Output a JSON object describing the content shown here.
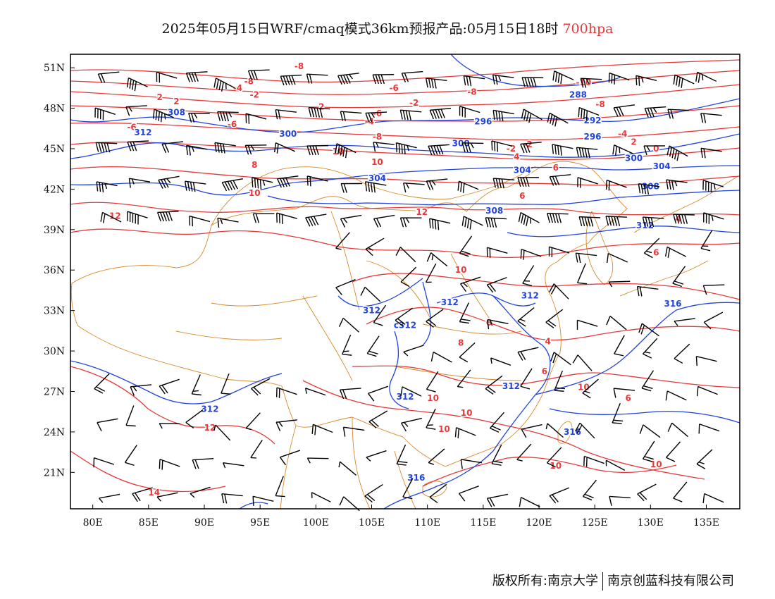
{
  "title": {
    "main": "2025年05月15日WRF/cmaq模式36km预报产品:05月15日18时",
    "level": "700hpa"
  },
  "colors": {
    "temperature_contour": "#e8393a",
    "height_contour": "#2244dd",
    "border": "#d98a2b",
    "wind_barb": "#000000",
    "frame": "#000000"
  },
  "axes": {
    "lon_labels": [
      "80E",
      "85E",
      "90E",
      "95E",
      "100E",
      "105E",
      "110E",
      "115E",
      "120E",
      "125E",
      "130E",
      "135E"
    ],
    "lat_labels": [
      "51N",
      "48N",
      "45N",
      "42N",
      "39N",
      "36N",
      "33N",
      "30N",
      "27N",
      "24N",
      "21N"
    ],
    "lon_values": [
      80,
      85,
      90,
      95,
      100,
      105,
      110,
      115,
      120,
      125,
      130,
      135
    ],
    "lat_values": [
      51,
      48,
      45,
      42,
      39,
      36,
      33,
      30,
      27,
      24,
      21
    ],
    "lon_range": [
      78,
      138
    ],
    "lat_range": [
      18.3,
      52
    ]
  },
  "contour_labels": {
    "temperature": [
      {
        "text": "-8",
        "lon": 98.5,
        "lat": 51.1
      },
      {
        "text": "-8",
        "lon": 94.0,
        "lat": 50.0
      },
      {
        "text": "-4",
        "lon": 93.0,
        "lat": 49.5
      },
      {
        "text": "-2",
        "lon": 94.5,
        "lat": 49.0
      },
      {
        "text": "-6",
        "lon": 107.0,
        "lat": 49.5
      },
      {
        "text": "-8",
        "lon": 114.0,
        "lat": 49.2
      },
      {
        "text": "-2",
        "lon": 108.8,
        "lat": 48.4
      },
      {
        "text": "2",
        "lon": 86.0,
        "lat": 48.8
      },
      {
        "text": "2",
        "lon": 87.5,
        "lat": 48.5
      },
      {
        "text": "2",
        "lon": 100.5,
        "lat": 48.1
      },
      {
        "text": "-6",
        "lon": 83.5,
        "lat": 46.6
      },
      {
        "text": "-6",
        "lon": 92.5,
        "lat": 46.8
      },
      {
        "text": "-6",
        "lon": 105.5,
        "lat": 47.6
      },
      {
        "text": "-4",
        "lon": 104.8,
        "lat": 47.0
      },
      {
        "text": "-8",
        "lon": 105.5,
        "lat": 45.9
      },
      {
        "text": "10",
        "lon": 102.0,
        "lat": 44.8
      },
      {
        "text": "10",
        "lon": 105.5,
        "lat": 44.0
      },
      {
        "text": "8",
        "lon": 94.5,
        "lat": 43.8
      },
      {
        "text": "10",
        "lon": 94.5,
        "lat": 41.7
      },
      {
        "text": "12",
        "lon": 82.0,
        "lat": 40.0
      },
      {
        "text": "12",
        "lon": 109.5,
        "lat": 40.3
      },
      {
        "text": "-8",
        "lon": 125.5,
        "lat": 48.3
      },
      {
        "text": "-10",
        "lon": 124.0,
        "lat": 49.9
      },
      {
        "text": "-4",
        "lon": 127.5,
        "lat": 46.1
      },
      {
        "text": "2",
        "lon": 128.5,
        "lat": 45.5
      },
      {
        "text": "0",
        "lon": 130.5,
        "lat": 45.0
      },
      {
        "text": "-2",
        "lon": 117.5,
        "lat": 45.0
      },
      {
        "text": "-2",
        "lon": 119.0,
        "lat": 45.3
      },
      {
        "text": "4",
        "lon": 118.0,
        "lat": 44.4
      },
      {
        "text": "6",
        "lon": 121.5,
        "lat": 43.6
      },
      {
        "text": "6",
        "lon": 118.5,
        "lat": 41.5
      },
      {
        "text": "4",
        "lon": 132.5,
        "lat": 39.8
      },
      {
        "text": "6",
        "lon": 130.5,
        "lat": 37.3
      },
      {
        "text": "10",
        "lon": 113.0,
        "lat": 36.0
      },
      {
        "text": "6",
        "lon": 115.5,
        "lat": 32.1
      },
      {
        "text": "8",
        "lon": 113.0,
        "lat": 30.6
      },
      {
        "text": "4",
        "lon": 120.8,
        "lat": 30.7
      },
      {
        "text": "6",
        "lon": 120.5,
        "lat": 28.5
      },
      {
        "text": "10",
        "lon": 110.5,
        "lat": 26.5
      },
      {
        "text": "10",
        "lon": 113.5,
        "lat": 25.4
      },
      {
        "text": "10",
        "lon": 111.5,
        "lat": 24.2
      },
      {
        "text": "10",
        "lon": 124.0,
        "lat": 27.3
      },
      {
        "text": "6",
        "lon": 128.0,
        "lat": 26.5
      },
      {
        "text": "10",
        "lon": 121.5,
        "lat": 21.5
      },
      {
        "text": "10",
        "lon": 130.5,
        "lat": 21.6
      },
      {
        "text": "12",
        "lon": 90.5,
        "lat": 24.3
      },
      {
        "text": "14",
        "lon": 85.5,
        "lat": 19.5
      }
    ],
    "height": [
      {
        "text": "288",
        "lon": 123.5,
        "lat": 49.0
      },
      {
        "text": "292",
        "lon": 124.8,
        "lat": 47.1
      },
      {
        "text": "296",
        "lon": 124.8,
        "lat": 45.9
      },
      {
        "text": "296",
        "lon": 115.0,
        "lat": 47.0
      },
      {
        "text": "300",
        "lon": 97.5,
        "lat": 46.1
      },
      {
        "text": "300",
        "lon": 113.0,
        "lat": 45.4
      },
      {
        "text": "300",
        "lon": 128.5,
        "lat": 44.3
      },
      {
        "text": "304",
        "lon": 131.0,
        "lat": 43.7
      },
      {
        "text": "304",
        "lon": 105.5,
        "lat": 42.8
      },
      {
        "text": "304",
        "lon": 118.5,
        "lat": 43.4
      },
      {
        "text": "308",
        "lon": 87.5,
        "lat": 47.7
      },
      {
        "text": "308",
        "lon": 130.0,
        "lat": 42.2
      },
      {
        "text": "308",
        "lon": 116.0,
        "lat": 40.4
      },
      {
        "text": "312",
        "lon": 84.5,
        "lat": 46.2
      },
      {
        "text": "312",
        "lon": 129.5,
        "lat": 39.3
      },
      {
        "text": "312",
        "lon": 105.0,
        "lat": 33.0
      },
      {
        "text": "312",
        "lon": 112.0,
        "lat": 33.6
      },
      {
        "text": "312",
        "lon": 119.2,
        "lat": 34.1
      },
      {
        "text": "c312",
        "lon": 108.0,
        "lat": 31.9
      },
      {
        "text": "312",
        "lon": 117.5,
        "lat": 27.4
      },
      {
        "text": "312",
        "lon": 108.0,
        "lat": 26.6
      },
      {
        "text": "312",
        "lon": 90.5,
        "lat": 25.7
      },
      {
        "text": "316",
        "lon": 132.0,
        "lat": 33.5
      },
      {
        "text": "316",
        "lon": 123.0,
        "lat": 24.0
      },
      {
        "text": "316",
        "lon": 109.0,
        "lat": 20.6
      }
    ]
  },
  "credit": {
    "left": "版权所有:南京大学",
    "right": "南京创蓝科技有限公司"
  }
}
